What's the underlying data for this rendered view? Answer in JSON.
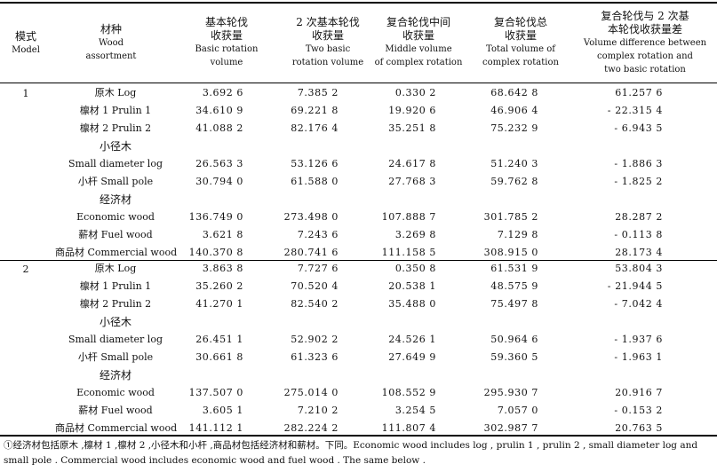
{
  "table": {
    "headers": {
      "model_cn": "模式",
      "model_en": "Model",
      "species_cn": "材种",
      "species_en1": "Wood",
      "species_en2": "assortment",
      "basic_cn1": "基本轮伐",
      "basic_cn2": "收获量",
      "basic_en1": "Basic rotation",
      "basic_en2": "volume",
      "two_cn1": "2 次基本轮伐",
      "two_cn2": "收获量",
      "two_en1": "Two basic",
      "two_en2": "rotation volume",
      "middle_cn1": "复合轮伐中间",
      "middle_cn2": "收获量",
      "middle_en1": "Middle volume",
      "middle_en2": "of complex rotation",
      "total_cn1": "复合轮伐总",
      "total_cn2": "收获量",
      "total_en1": "Total volume of",
      "total_en2": "complex rotation",
      "diff_cn1": "复合轮伐与 2 次基",
      "diff_cn2": "本轮伐收获量差",
      "diff_en1": "Volume difference between",
      "diff_en2": "complex rotation and",
      "diff_en3": "two basic rotation"
    },
    "groups": [
      {
        "model": "1",
        "rows": [
          {
            "label": "原木 Log",
            "basic": "3.692 6",
            "two": "7.385 2",
            "middle": "0.330 2",
            "total": "68.642 8",
            "diff": "61.257 6"
          },
          {
            "label": "檩材 1  Prulin 1",
            "basic": "34.610 9",
            "two": "69.221 8",
            "middle": "19.920 6",
            "total": "46.906 4",
            "diff": "- 22.315 4"
          },
          {
            "label": "檩材 2  Prulin 2",
            "basic": "41.088 2",
            "two": "82.176 4",
            "middle": "35.251 8",
            "total": "75.232 9",
            "diff": "- 6.943 5"
          },
          {
            "label_cn": "小径木",
            "label": "Small diameter log",
            "basic": "26.563 3",
            "two": "53.126 6",
            "middle": "24.617 8",
            "total": "51.240 3",
            "diff": "- 1.886 3"
          },
          {
            "label": "小杆  Small pole",
            "basic": "30.794 0",
            "two": "61.588 0",
            "middle": "27.768 3",
            "total": "59.762 8",
            "diff": "- 1.825 2"
          },
          {
            "label_cn": "经济材",
            "label": "Economic wood",
            "basic": "136.749 0",
            "two": "273.498 0",
            "middle": "107.888 7",
            "total": "301.785 2",
            "diff": "28.287 2"
          },
          {
            "label": "薪材  Fuel wood",
            "basic": "3.621 8",
            "two": "7.243 6",
            "middle": "3.269 8",
            "total": "7.129 8",
            "diff": "- 0.113 8"
          },
          {
            "label": "商品材  Commercial wood",
            "basic": "140.370 8",
            "two": "280.741 6",
            "middle": "111.158 5",
            "total": "308.915 0",
            "diff": "28.173 4"
          }
        ]
      },
      {
        "model": "2",
        "rows": [
          {
            "label": "原木 Log",
            "basic": "3.863 8",
            "two": "7.727 6",
            "middle": "0.350 8",
            "total": "61.531 9",
            "diff": "53.804 3"
          },
          {
            "label": "檩材 1  Prulin 1",
            "basic": "35.260 2",
            "two": "70.520 4",
            "middle": "20.538 1",
            "total": "48.575 9",
            "diff": "- 21.944 5"
          },
          {
            "label": "檩材 2  Prulin 2",
            "basic": "41.270 1",
            "two": "82.540 2",
            "middle": "35.488 0",
            "total": "75.497 8",
            "diff": "- 7.042 4"
          },
          {
            "label_cn": "小径木",
            "label": "Small diameter log",
            "basic": "26.451 1",
            "two": "52.902 2",
            "middle": "24.526 1",
            "total": "50.964 6",
            "diff": "- 1.937 6"
          },
          {
            "label": "小杆  Small pole",
            "basic": "30.661 8",
            "two": "61.323 6",
            "middle": "27.649 9",
            "total": "59.360 5",
            "diff": "- 1.963 1"
          },
          {
            "label_cn": "经济材",
            "label": "Economic wood",
            "basic": "137.507 0",
            "two": "275.014 0",
            "middle": "108.552 9",
            "total": "295.930 7",
            "diff": "20.916 7"
          },
          {
            "label": "薪材  Fuel wood",
            "basic": "3.605 1",
            "two": "7.210 2",
            "middle": "3.254 5",
            "total": "7.057 0",
            "diff": "- 0.153 2"
          },
          {
            "label": "商品材  Commercial wood",
            "basic": "141.112 1",
            "two": "282.224 2",
            "middle": "111.807 4",
            "total": "302.987 7",
            "diff": "20.763 5"
          }
        ]
      }
    ],
    "footnote": "①经济材包括原木 ,檩材 1 ,檩材 2 ,小径木和小杆 ,商品材包括经济材和薪材。下同。Economic wood includes log , prulin 1 , prulin 2 , small diameter log and small pole . Commercial wood includes economic wood and fuel wood . The same below ."
  }
}
